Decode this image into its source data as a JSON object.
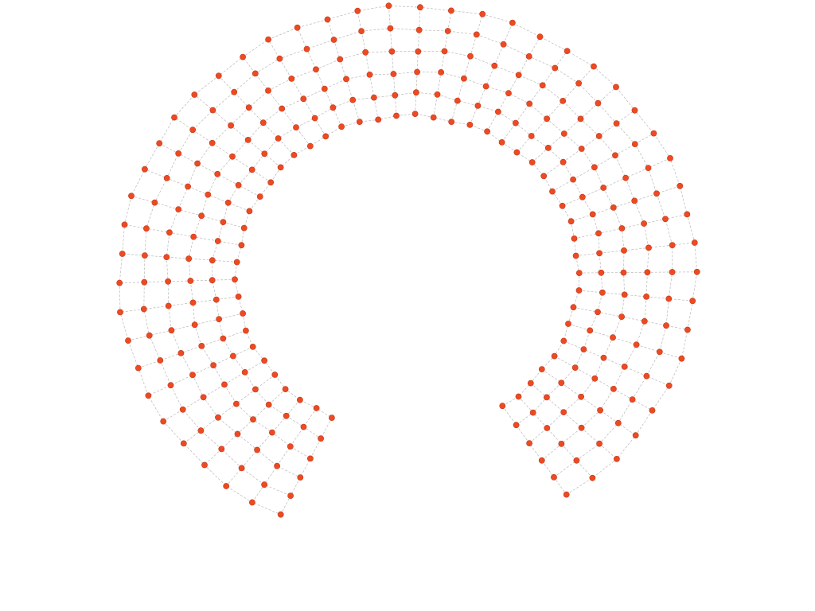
{
  "figure": {
    "kind": "horseshoe-point-mesh",
    "rings": 6,
    "spokes": 49,
    "arc_start_deg": -60,
    "arc_end_deg": 240,
    "point_color": "#ee4a22",
    "point_stroke_color": "#c0391a",
    "grid_line_color": "#b8b8b8",
    "background_color": "#ffffff"
  }
}
